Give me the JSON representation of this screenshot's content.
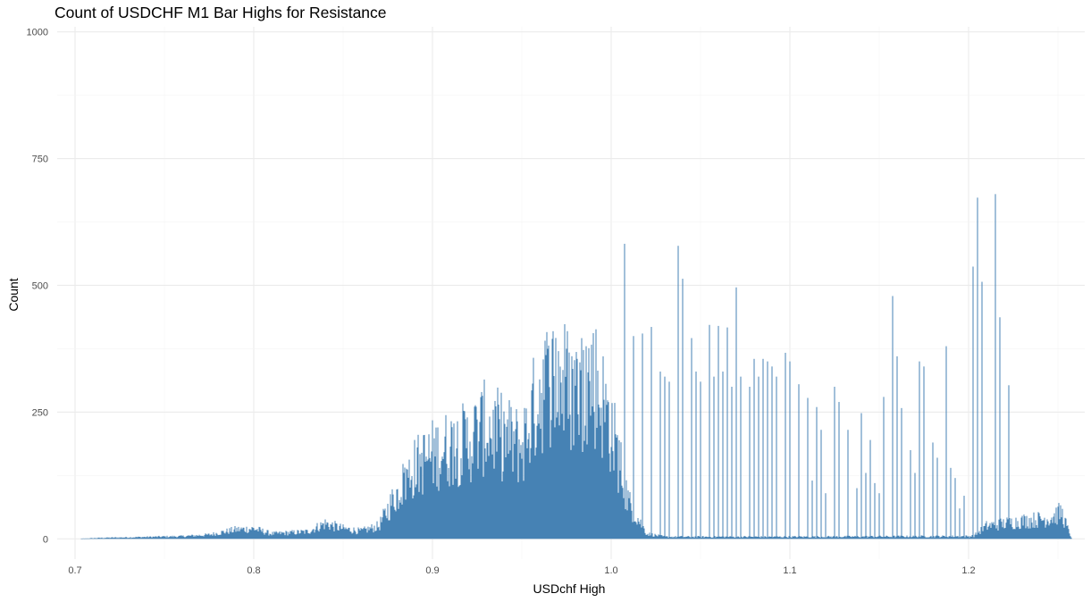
{
  "chart_data": {
    "type": "bar",
    "title": "Count of USDCHF M1 Bar Highs for Resistance",
    "xlabel": "USDchf High",
    "ylabel": "Count",
    "xlim": [
      0.69,
      1.265
    ],
    "ylim": [
      -40,
      1010
    ],
    "x_ticks": [
      0.7,
      0.8,
      0.9,
      1.0,
      1.1,
      1.2
    ],
    "x_tick_labels": [
      "0.7",
      "0.8",
      "0.9",
      "1.0",
      "1.1",
      "1.2"
    ],
    "y_ticks": [
      0,
      250,
      500,
      750,
      1000
    ],
    "y_tick_labels": [
      "0",
      "250",
      "500",
      "750",
      "1000"
    ],
    "grid": true,
    "bar_color": "#4682b4",
    "bin_width": 0.0005,
    "spikes": [
      {
        "x": 1.0075,
        "value": 582
      },
      {
        "x": 1.0375,
        "value": 578
      },
      {
        "x": 1.04,
        "value": 513
      },
      {
        "x": 1.07,
        "value": 496
      },
      {
        "x": 1.2025,
        "value": 537
      },
      {
        "x": 1.205,
        "value": 673
      },
      {
        "x": 1.2075,
        "value": 507
      },
      {
        "x": 1.215,
        "value": 680
      },
      {
        "x": 1.2175,
        "value": 437
      },
      {
        "x": 1.2225,
        "value": 303
      },
      {
        "x": 1.1575,
        "value": 479
      },
      {
        "x": 1.16,
        "value": 360
      },
      {
        "x": 1.055,
        "value": 422
      },
      {
        "x": 1.06,
        "value": 420
      },
      {
        "x": 1.065,
        "value": 417
      },
      {
        "x": 1.0225,
        "value": 418
      },
      {
        "x": 1.0175,
        "value": 405
      },
      {
        "x": 1.0125,
        "value": 400
      },
      {
        "x": 1.0275,
        "value": 330
      },
      {
        "x": 1.03,
        "value": 320
      },
      {
        "x": 1.0325,
        "value": 310
      },
      {
        "x": 1.045,
        "value": 396
      },
      {
        "x": 1.0475,
        "value": 330
      },
      {
        "x": 1.05,
        "value": 310
      },
      {
        "x": 1.0575,
        "value": 320
      },
      {
        "x": 1.0625,
        "value": 330
      },
      {
        "x": 1.0675,
        "value": 300
      },
      {
        "x": 1.0725,
        "value": 320
      },
      {
        "x": 1.0775,
        "value": 300
      },
      {
        "x": 1.08,
        "value": 355
      },
      {
        "x": 1.0825,
        "value": 320
      },
      {
        "x": 1.085,
        "value": 355
      },
      {
        "x": 1.0875,
        "value": 350
      },
      {
        "x": 1.09,
        "value": 340
      },
      {
        "x": 1.0925,
        "value": 320
      },
      {
        "x": 1.0975,
        "value": 367
      },
      {
        "x": 1.1,
        "value": 350
      },
      {
        "x": 1.105,
        "value": 305
      },
      {
        "x": 1.11,
        "value": 278
      },
      {
        "x": 1.115,
        "value": 260
      },
      {
        "x": 1.1175,
        "value": 215
      },
      {
        "x": 1.125,
        "value": 300
      },
      {
        "x": 1.1275,
        "value": 270
      },
      {
        "x": 1.1325,
        "value": 215
      },
      {
        "x": 1.14,
        "value": 248
      },
      {
        "x": 1.145,
        "value": 195
      },
      {
        "x": 1.1525,
        "value": 280
      },
      {
        "x": 1.1625,
        "value": 258
      },
      {
        "x": 1.1675,
        "value": 175
      },
      {
        "x": 1.1725,
        "value": 350
      },
      {
        "x": 1.175,
        "value": 340
      },
      {
        "x": 1.18,
        "value": 190
      },
      {
        "x": 1.1825,
        "value": 160
      },
      {
        "x": 1.1875,
        "value": 380
      },
      {
        "x": 1.19,
        "value": 140
      },
      {
        "x": 1.1925,
        "value": 120
      },
      {
        "x": 1.1975,
        "value": 85
      },
      {
        "x": 1.1125,
        "value": 115
      },
      {
        "x": 1.12,
        "value": 90
      },
      {
        "x": 1.1375,
        "value": 100
      },
      {
        "x": 1.1425,
        "value": 130
      },
      {
        "x": 1.1475,
        "value": 110
      },
      {
        "x": 1.17,
        "value": 130
      },
      {
        "x": 1.15,
        "value": 90
      },
      {
        "x": 1.195,
        "value": 60
      }
    ],
    "envelope": [
      [
        0.7,
        0
      ],
      [
        0.715,
        2
      ],
      [
        0.73,
        3
      ],
      [
        0.745,
        4
      ],
      [
        0.76,
        5
      ],
      [
        0.775,
        8
      ],
      [
        0.79,
        18
      ],
      [
        0.8,
        20
      ],
      [
        0.81,
        10
      ],
      [
        0.82,
        12
      ],
      [
        0.83,
        14
      ],
      [
        0.84,
        30
      ],
      [
        0.85,
        20
      ],
      [
        0.86,
        15
      ],
      [
        0.87,
        25
      ],
      [
        0.88,
        90
      ],
      [
        0.89,
        140
      ],
      [
        0.9,
        165
      ],
      [
        0.91,
        180
      ],
      [
        0.92,
        190
      ],
      [
        0.93,
        220
      ],
      [
        0.94,
        200
      ],
      [
        0.95,
        180
      ],
      [
        0.96,
        290
      ],
      [
        0.97,
        320
      ],
      [
        0.98,
        280
      ],
      [
        0.99,
        320
      ],
      [
        1.0,
        220
      ],
      [
        1.01,
        70
      ],
      [
        1.02,
        10
      ],
      [
        1.03,
        4
      ],
      [
        1.1,
        4
      ],
      [
        1.2,
        5
      ],
      [
        1.203,
        6
      ],
      [
        1.21,
        25
      ],
      [
        1.23,
        35
      ],
      [
        1.245,
        40
      ],
      [
        1.252,
        52
      ],
      [
        1.256,
        15
      ],
      [
        1.258,
        0
      ]
    ]
  }
}
